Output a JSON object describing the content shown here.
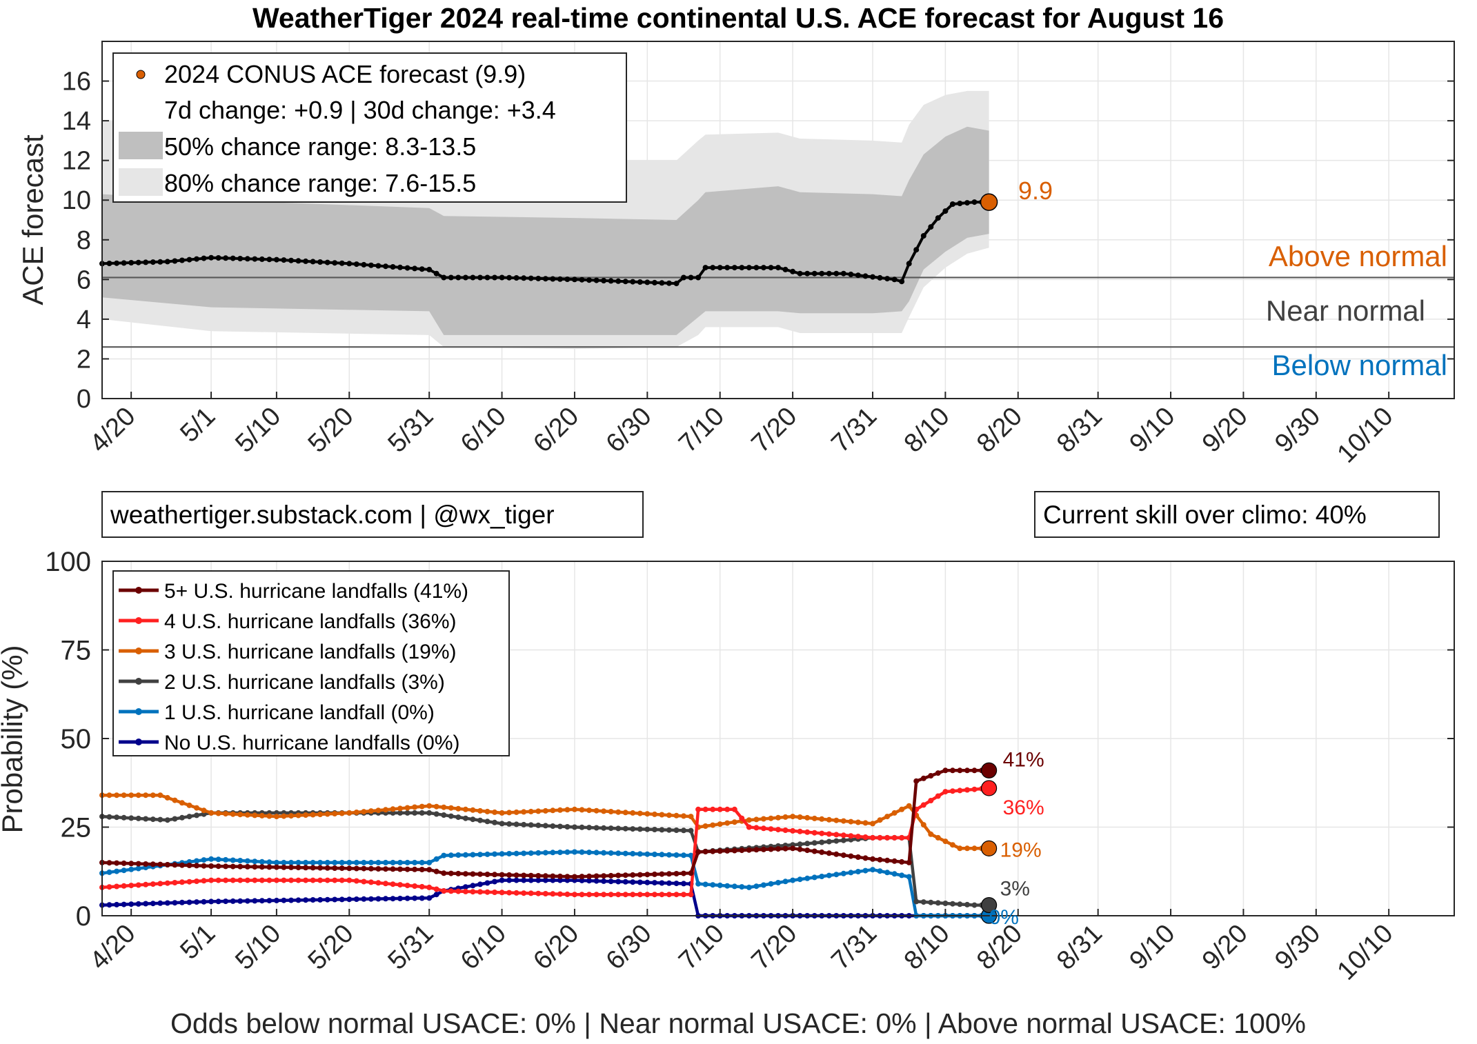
{
  "title": "WeatherTiger 2024 real-time continental U.S. ACE forecast for August 16",
  "credit_box": "weathertiger.substack.com | @wx_tiger",
  "skill_box": "Current skill over climo: 40%",
  "footer": "Odds below normal USACE: 0% | Near normal USACE: 0% | Above normal USACE: 100%",
  "colors": {
    "orange": "#d95f02",
    "blue": "#0072bd",
    "dark_gray": "#404040",
    "band50": "#bfbfbf",
    "band80": "#e6e6e6",
    "dark_red": "#6b0000",
    "red": "#ff2020",
    "black_series": "#000000",
    "navy": "#00008b"
  },
  "chart_data": [
    {
      "type": "line",
      "name": "ace",
      "ylabel": "ACE forecast",
      "xlabel": "",
      "ylim": [
        0,
        18
      ],
      "yticks": [
        0,
        2,
        4,
        6,
        8,
        10,
        12,
        14,
        16
      ],
      "x_range": [
        "2024-04-16",
        "2024-10-19"
      ],
      "x_ticks": [
        {
          "date": "2024-04-20",
          "label": "4/20"
        },
        {
          "date": "2024-05-01",
          "label": "5/1"
        },
        {
          "date": "2024-05-10",
          "label": "5/10"
        },
        {
          "date": "2024-05-20",
          "label": "5/20"
        },
        {
          "date": "2024-05-31",
          "label": "5/31"
        },
        {
          "date": "2024-06-10",
          "label": "6/10"
        },
        {
          "date": "2024-06-20",
          "label": "6/20"
        },
        {
          "date": "2024-06-30",
          "label": "6/30"
        },
        {
          "date": "2024-07-10",
          "label": "7/10"
        },
        {
          "date": "2024-07-20",
          "label": "7/20"
        },
        {
          "date": "2024-07-31",
          "label": "7/31"
        },
        {
          "date": "2024-08-10",
          "label": "8/10"
        },
        {
          "date": "2024-08-20",
          "label": "8/20"
        },
        {
          "date": "2024-08-31",
          "label": "8/31"
        },
        {
          "date": "2024-09-10",
          "label": "9/10"
        },
        {
          "date": "2024-09-20",
          "label": "9/20"
        },
        {
          "date": "2024-09-30",
          "label": "9/30"
        },
        {
          "date": "2024-10-10",
          "label": "10/10"
        }
      ],
      "grid": true,
      "thresholds": [
        {
          "y": 6.1,
          "label_above": "Above normal",
          "label_below": "Near normal"
        },
        {
          "y": 2.6,
          "label_below": "Below normal"
        }
      ],
      "legend": {
        "placement": "top-left",
        "entries": [
          "2024 CONUS ACE forecast (9.9)",
          "7d change: +0.9 | 30d change: +3.4",
          "50% chance range: 8.3-13.5",
          "80% chance range: 7.6-15.5"
        ]
      },
      "end_label": "9.9",
      "series": [
        {
          "name": "2024 CONUS ACE forecast",
          "points": [
            [
              "2024-04-16",
              6.8
            ],
            [
              "2024-04-25",
              6.9
            ],
            [
              "2024-05-01",
              7.1
            ],
            [
              "2024-05-10",
              7.0
            ],
            [
              "2024-05-20",
              6.8
            ],
            [
              "2024-05-31",
              6.5
            ],
            [
              "2024-06-02",
              6.1
            ],
            [
              "2024-06-10",
              6.1
            ],
            [
              "2024-06-20",
              6.0
            ],
            [
              "2024-07-04",
              5.8
            ],
            [
              "2024-07-05",
              6.1
            ],
            [
              "2024-07-07",
              6.1
            ],
            [
              "2024-07-08",
              6.6
            ],
            [
              "2024-07-18",
              6.6
            ],
            [
              "2024-07-21",
              6.3
            ],
            [
              "2024-07-27",
              6.3
            ],
            [
              "2024-08-03",
              6.0
            ],
            [
              "2024-08-04",
              5.9
            ],
            [
              "2024-08-05",
              6.8
            ],
            [
              "2024-08-07",
              8.2
            ],
            [
              "2024-08-09",
              9.1
            ],
            [
              "2024-08-11",
              9.8
            ],
            [
              "2024-08-14",
              9.9
            ],
            [
              "2024-08-16",
              9.9
            ]
          ]
        }
      ],
      "band50": [
        [
          "2024-04-16",
          10.3,
          5.1
        ],
        [
          "2024-05-01",
          10.0,
          4.6
        ],
        [
          "2024-05-31",
          9.6,
          4.4
        ],
        [
          "2024-06-02",
          9.2,
          3.2
        ],
        [
          "2024-06-20",
          9.1,
          3.2
        ],
        [
          "2024-07-04",
          9.0,
          3.2
        ],
        [
          "2024-07-07",
          10.0,
          4.1
        ],
        [
          "2024-07-08",
          10.4,
          4.4
        ],
        [
          "2024-07-18",
          10.7,
          4.4
        ],
        [
          "2024-07-21",
          10.4,
          4.3
        ],
        [
          "2024-07-31",
          10.3,
          4.3
        ],
        [
          "2024-08-04",
          10.2,
          4.4
        ],
        [
          "2024-08-05",
          11.0,
          4.9
        ],
        [
          "2024-08-07",
          12.3,
          6.5
        ],
        [
          "2024-08-10",
          13.2,
          7.4
        ],
        [
          "2024-08-13",
          13.7,
          8.1
        ],
        [
          "2024-08-16",
          13.5,
          8.3
        ]
      ],
      "band80": [
        [
          "2024-04-16",
          14.0,
          4.0
        ],
        [
          "2024-05-01",
          13.8,
          3.4
        ],
        [
          "2024-05-31",
          12.8,
          3.2
        ],
        [
          "2024-06-02",
          12.1,
          2.6
        ],
        [
          "2024-06-20",
          12.0,
          2.5
        ],
        [
          "2024-07-04",
          12.0,
          2.6
        ],
        [
          "2024-07-07",
          13.0,
          3.2
        ],
        [
          "2024-07-08",
          13.3,
          3.6
        ],
        [
          "2024-07-18",
          13.4,
          3.6
        ],
        [
          "2024-07-21",
          13.1,
          3.3
        ],
        [
          "2024-07-31",
          13.0,
          3.3
        ],
        [
          "2024-08-04",
          12.9,
          3.3
        ],
        [
          "2024-08-05",
          13.8,
          4.1
        ],
        [
          "2024-08-07",
          14.8,
          5.6
        ],
        [
          "2024-08-10",
          15.3,
          6.6
        ],
        [
          "2024-08-13",
          15.5,
          7.3
        ],
        [
          "2024-08-16",
          15.5,
          7.6
        ]
      ]
    },
    {
      "type": "line",
      "name": "landfalls",
      "ylabel": "Probability (%)",
      "xlabel": "",
      "ylim": [
        0,
        100
      ],
      "yticks": [
        0,
        25,
        50,
        75,
        100
      ],
      "x_range": [
        "2024-04-16",
        "2024-10-19"
      ],
      "grid": true,
      "legend": {
        "placement": "top-left"
      },
      "series": [
        {
          "name": "5+ U.S. hurricane landfalls (41%)",
          "end_label": "41%",
          "color": "#6b0000",
          "points": [
            [
              "2024-04-16",
              15
            ],
            [
              "2024-05-01",
              14
            ],
            [
              "2024-05-31",
              13
            ],
            [
              "2024-06-02",
              12
            ],
            [
              "2024-06-20",
              11
            ],
            [
              "2024-07-06",
              12
            ],
            [
              "2024-07-07",
              18
            ],
            [
              "2024-07-20",
              19
            ],
            [
              "2024-07-31",
              16
            ],
            [
              "2024-08-05",
              15
            ],
            [
              "2024-08-06",
              38
            ],
            [
              "2024-08-10",
              41
            ],
            [
              "2024-08-16",
              41
            ]
          ]
        },
        {
          "name": "4 U.S. hurricane landfalls (36%)",
          "end_label": "36%",
          "color": "#ff2020",
          "points": [
            [
              "2024-04-16",
              8
            ],
            [
              "2024-05-01",
              10
            ],
            [
              "2024-05-20",
              10
            ],
            [
              "2024-05-31",
              8
            ],
            [
              "2024-06-02",
              7
            ],
            [
              "2024-06-20",
              6
            ],
            [
              "2024-07-06",
              6
            ],
            [
              "2024-07-07",
              30
            ],
            [
              "2024-07-12",
              30
            ],
            [
              "2024-07-14",
              25
            ],
            [
              "2024-07-31",
              22
            ],
            [
              "2024-08-05",
              22
            ],
            [
              "2024-08-06",
              30
            ],
            [
              "2024-08-10",
              35
            ],
            [
              "2024-08-16",
              36
            ]
          ]
        },
        {
          "name": "3 U.S. hurricane landfalls (19%)",
          "end_label": "19%",
          "color": "#d95f02",
          "points": [
            [
              "2024-04-16",
              34
            ],
            [
              "2024-04-24",
              34
            ],
            [
              "2024-05-01",
              29
            ],
            [
              "2024-05-10",
              28
            ],
            [
              "2024-05-20",
              29
            ],
            [
              "2024-05-31",
              31
            ],
            [
              "2024-06-10",
              29
            ],
            [
              "2024-06-20",
              30
            ],
            [
              "2024-07-06",
              28
            ],
            [
              "2024-07-07",
              25
            ],
            [
              "2024-07-14",
              27
            ],
            [
              "2024-07-20",
              28
            ],
            [
              "2024-07-31",
              26
            ],
            [
              "2024-08-05",
              31
            ],
            [
              "2024-08-08",
              23
            ],
            [
              "2024-08-12",
              19
            ],
            [
              "2024-08-16",
              19
            ]
          ]
        },
        {
          "name": "2 U.S. hurricane landfalls (3%)",
          "end_label": "3%",
          "color": "#404040",
          "points": [
            [
              "2024-04-16",
              28
            ],
            [
              "2024-04-25",
              27
            ],
            [
              "2024-05-01",
              29
            ],
            [
              "2024-05-20",
              29
            ],
            [
              "2024-05-31",
              29
            ],
            [
              "2024-06-10",
              26
            ],
            [
              "2024-06-20",
              25
            ],
            [
              "2024-07-06",
              24
            ],
            [
              "2024-07-07",
              18
            ],
            [
              "2024-07-20",
              20
            ],
            [
              "2024-07-31",
              22
            ],
            [
              "2024-08-05",
              22
            ],
            [
              "2024-08-06",
              4
            ],
            [
              "2024-08-14",
              3
            ],
            [
              "2024-08-16",
              3
            ]
          ]
        },
        {
          "name": "1 U.S. hurricane landfall (0%)",
          "end_label": "0%",
          "color": "#0072bd",
          "points": [
            [
              "2024-04-16",
              12
            ],
            [
              "2024-05-01",
              16
            ],
            [
              "2024-05-10",
              15
            ],
            [
              "2024-05-31",
              15
            ],
            [
              "2024-06-02",
              17
            ],
            [
              "2024-06-20",
              18
            ],
            [
              "2024-07-06",
              17
            ],
            [
              "2024-07-07",
              9
            ],
            [
              "2024-07-14",
              8
            ],
            [
              "2024-07-20",
              10
            ],
            [
              "2024-07-31",
              13
            ],
            [
              "2024-08-05",
              11
            ],
            [
              "2024-08-06",
              0
            ],
            [
              "2024-08-16",
              0
            ]
          ]
        },
        {
          "name": "No U.S. hurricane landfalls (0%)",
          "color": "#00008b",
          "points": [
            [
              "2024-04-16",
              3
            ],
            [
              "2024-05-01",
              4
            ],
            [
              "2024-05-31",
              5
            ],
            [
              "2024-06-02",
              7
            ],
            [
              "2024-06-10",
              10
            ],
            [
              "2024-06-20",
              10
            ],
            [
              "2024-07-06",
              9
            ],
            [
              "2024-07-07",
              0
            ],
            [
              "2024-08-16",
              0
            ]
          ]
        }
      ]
    }
  ]
}
